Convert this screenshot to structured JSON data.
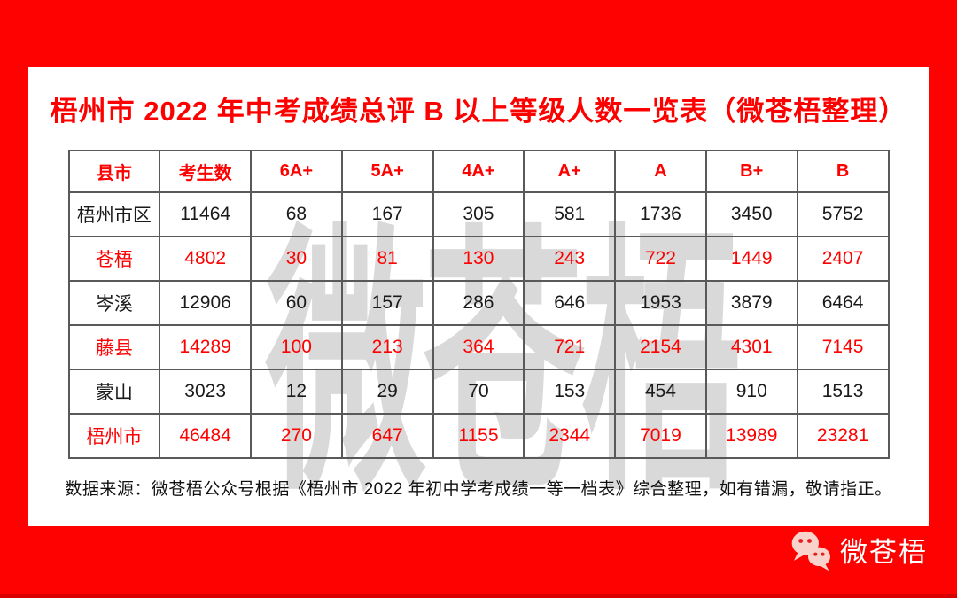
{
  "page": {
    "title": "梧州市 2022 年中考成绩总评 B 以上等级人数一览表（微苍梧整理）",
    "watermark": "微苍梧",
    "source_note": "数据来源：微苍梧公众号根据《梧州市 2022 年初中学考成绩一等一档表》综合整理，如有错漏，敬请指正。",
    "brand": "微苍梧"
  },
  "colors": {
    "background_red": "#fe0101",
    "accent_red": "#fd0100",
    "text_black": "#1a1a1a",
    "border_gray": "#595959",
    "watermark_gray": "#d9d9d9",
    "logo_bubble_pink": "#f9d3cb",
    "logo_eye_red": "#e52020"
  },
  "chart_data": {
    "type": "table",
    "title": "梧州市 2022 年中考成绩总评 B 以上等级人数一览表（微苍梧整理）",
    "columns": [
      "县市",
      "考生数",
      "6A+",
      "5A+",
      "4A+",
      "A+",
      "A",
      "B+",
      "B"
    ],
    "rows": [
      {
        "highlight": false,
        "cells": [
          "梧州市区",
          "11464",
          "68",
          "167",
          "305",
          "581",
          "1736",
          "3450",
          "5752"
        ]
      },
      {
        "highlight": true,
        "cells": [
          "苍梧",
          "4802",
          "30",
          "81",
          "130",
          "243",
          "722",
          "1449",
          "2407"
        ]
      },
      {
        "highlight": false,
        "cells": [
          "岑溪",
          "12906",
          "60",
          "157",
          "286",
          "646",
          "1953",
          "3879",
          "6464"
        ]
      },
      {
        "highlight": true,
        "cells": [
          "藤县",
          "14289",
          "100",
          "213",
          "364",
          "721",
          "2154",
          "4301",
          "7145"
        ]
      },
      {
        "highlight": false,
        "cells": [
          "蒙山",
          "3023",
          "12",
          "29",
          "70",
          "153",
          "454",
          "910",
          "1513"
        ]
      },
      {
        "highlight": true,
        "cells": [
          "梧州市",
          "46484",
          "270",
          "647",
          "1155",
          "2344",
          "7019",
          "13989",
          "23281"
        ]
      }
    ],
    "legend": "红色行与表头为强调色（红），其余数据行为黑色",
    "grid": true
  }
}
